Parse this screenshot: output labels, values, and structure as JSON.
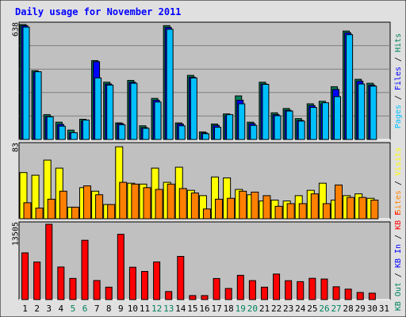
{
  "chart_data": {
    "type": "bar",
    "title": "Daily usage for November 2011",
    "colors": {
      "title": "#0000ff",
      "frame_bg": "#e0e0e0",
      "plot_bg": "#c0c0c0",
      "hits": "#00805c",
      "files": "#0000ff",
      "pages": "#00c0ff",
      "visits": "#ffff00",
      "sites": "#ff8000",
      "kb_f": "#ff0000",
      "kb_in": "#0000ff",
      "kb_out": "#00805c",
      "weekday": "#000000",
      "weekend": "#00805c"
    },
    "categories": [
      "1",
      "2",
      "3",
      "4",
      "5",
      "6",
      "7",
      "8",
      "9",
      "10",
      "11",
      "12",
      "13",
      "14",
      "15",
      "16",
      "17",
      "18",
      "19",
      "20",
      "21",
      "22",
      "23",
      "24",
      "25",
      "26",
      "27",
      "28",
      "29",
      "30",
      "31"
    ],
    "weekend_days": [
      5,
      6,
      12,
      13,
      19,
      20,
      26,
      27
    ],
    "panels": [
      {
        "id": "hits",
        "ymax_label": "638",
        "ylim": [
          0,
          638
        ],
        "legend": [
          {
            "text": "Hits",
            "color": "#00805c"
          },
          {
            "text": "/",
            "color": "#000000"
          },
          {
            "text": "Files",
            "color": "#0000ff"
          },
          {
            "text": "/",
            "color": "#000000"
          },
          {
            "text": "Pages",
            "color": "#00c0ff"
          }
        ],
        "series": [
          {
            "name": "Hits",
            "values": [
              638,
              382,
              138,
              96,
              52,
              112,
              438,
              318,
              92,
              328,
              76,
              228,
              632,
              92,
              356,
              42,
              86,
              142,
              242,
              96,
              318,
              148,
              172,
              116,
              198,
              212,
              293,
              602,
              334,
              312,
              0
            ]
          },
          {
            "name": "Files",
            "values": [
              632,
              374,
              128,
              84,
              38,
              102,
              432,
              308,
              88,
              318,
              66,
              218,
              622,
              86,
              346,
              36,
              78,
              132,
              218,
              88,
              308,
              138,
              162,
              106,
              188,
              198,
              278,
              592,
              324,
              302,
              0
            ]
          },
          {
            "name": "Pages",
            "values": [
              624,
              376,
              126,
              74,
              38,
              108,
              342,
              302,
              82,
              312,
              62,
              208,
              612,
              76,
              342,
              32,
              68,
              138,
              198,
              78,
              306,
              132,
              158,
              102,
              178,
              204,
              238,
              582,
              308,
              296,
              0
            ]
          }
        ]
      },
      {
        "id": "visits",
        "ymax_label": "83",
        "ylim": [
          0,
          83
        ],
        "legend": [
          {
            "text": "Visits",
            "color": "#ffff00"
          },
          {
            "text": "/",
            "color": "#000000"
          },
          {
            "text": "Sites",
            "color": "#ff8000"
          }
        ],
        "series": [
          {
            "name": "Visits",
            "values": [
              52,
              49,
              66,
              57,
              13,
              35,
              31,
              16,
              81,
              40,
              39,
              57,
              41,
              58,
              32,
              26,
              47,
              46,
              33,
              27,
              20,
              21,
              20,
              26,
              32,
              40,
              21,
              26,
              28,
              23,
              0
            ]
          },
          {
            "name": "Sites",
            "values": [
              18,
              12,
              22,
              31,
              13,
              37,
              27,
              16,
              41,
              39,
              35,
              33,
              39,
              34,
              29,
              11,
              22,
              23,
              31,
              30,
              26,
              14,
              17,
              17,
              28,
              17,
              38,
              24,
              24,
              21,
              0
            ]
          }
        ]
      },
      {
        "id": "kbytes",
        "ymax_label": "13505",
        "ylim": [
          0,
          13505
        ],
        "legend": [
          {
            "text": "KB F",
            "color": "#ff0000"
          },
          {
            "text": "/",
            "color": "#000000"
          },
          {
            "text": "KB In",
            "color": "#0000ff"
          },
          {
            "text": "/",
            "color": "#000000"
          },
          {
            "text": "KB Out",
            "color": "#00805c"
          }
        ],
        "series": [
          {
            "name": "KB F",
            "values": [
              8384,
              6738,
              13505,
              5841,
              3792,
              10637,
              3415,
              2225,
              11714,
              5799,
              5048,
              6748,
              1443,
              7746,
              718,
              718,
              3778,
              1992,
              4354,
              3401,
              2226,
              4580,
              3388,
              3216,
              3813,
              3683,
              2296,
              1868,
              1272,
              1144,
              0
            ]
          },
          {
            "name": "KB In",
            "values": [
              0,
              0,
              0,
              0,
              0,
              0,
              0,
              0,
              0,
              0,
              0,
              0,
              0,
              0,
              0,
              0,
              0,
              0,
              0,
              0,
              0,
              0,
              0,
              0,
              0,
              0,
              0,
              0,
              0,
              0,
              0
            ]
          },
          {
            "name": "KB Out",
            "values": [
              0,
              0,
              0,
              0,
              0,
              0,
              0,
              0,
              0,
              0,
              0,
              0,
              0,
              0,
              0,
              0,
              0,
              0,
              0,
              0,
              0,
              0,
              0,
              0,
              0,
              0,
              0,
              0,
              0,
              0,
              0
            ]
          }
        ]
      }
    ]
  }
}
